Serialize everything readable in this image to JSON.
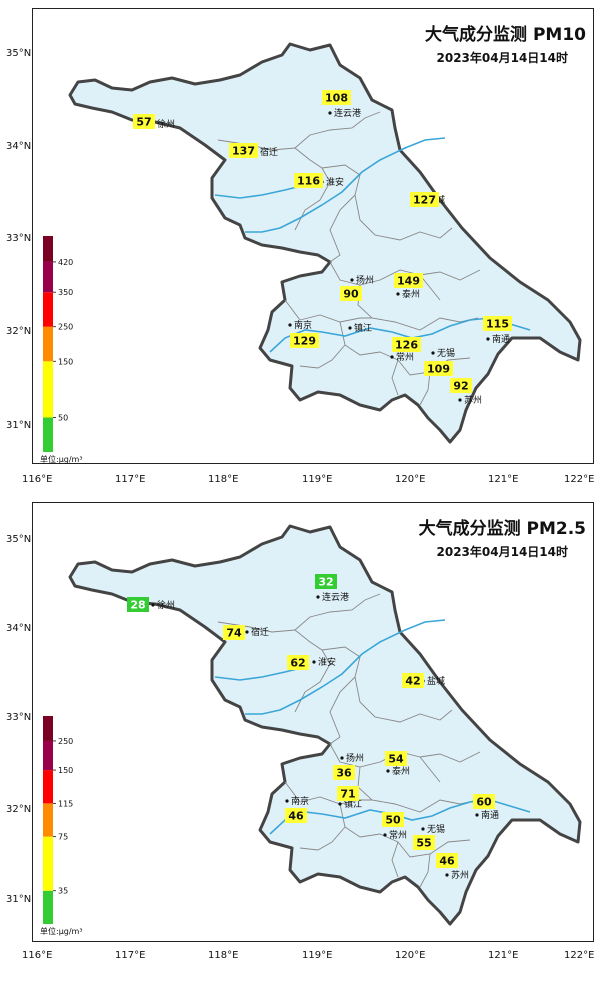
{
  "panels": [
    {
      "pollutant": "PM10",
      "title": "大气成分监测  PM10",
      "time": "2023年04月14日14时",
      "unit": "单位:μg/m³",
      "legend": {
        "bins": [
          {
            "color": "#33cc33"
          },
          {
            "color": "#ffff00"
          },
          {
            "color": "#ff8c00"
          },
          {
            "color": "#ff0000"
          },
          {
            "color": "#99004c"
          },
          {
            "color": "#7a0024"
          }
        ],
        "labels": [
          "50",
          "150",
          "250",
          "350",
          "420"
        ]
      },
      "cities": [
        {
          "name": "徐州",
          "value": "57",
          "color": "#ffff33"
        },
        {
          "name": "连云港",
          "value": "108",
          "color": "#ffff33"
        },
        {
          "name": "宿迁",
          "value": "137",
          "color": "#ffff33"
        },
        {
          "name": "淮安",
          "value": "116",
          "color": "#ffff33"
        },
        {
          "name": "盐城",
          "value": "127",
          "color": "#ffff33"
        },
        {
          "name": "扬州",
          "value": "90",
          "color": "#ffff33"
        },
        {
          "name": "泰州",
          "value": "149",
          "color": "#ffff33"
        },
        {
          "name": "南京",
          "value": "129",
          "color": "#ffff33"
        },
        {
          "name": "镇江",
          "value": "",
          "color": "#ffff33"
        },
        {
          "name": "常州",
          "value": "126",
          "color": "#ffff33"
        },
        {
          "name": "无锡",
          "value": "109",
          "color": "#ffff33"
        },
        {
          "name": "苏州",
          "value": "92",
          "color": "#ffff33"
        },
        {
          "name": "南通",
          "value": "115",
          "color": "#ffff33"
        }
      ]
    },
    {
      "pollutant": "PM2.5",
      "title": "大气成分监测  PM2.5",
      "time": "2023年04月14日14时",
      "unit": "单位:μg/m³",
      "legend": {
        "bins": [
          {
            "color": "#33cc33"
          },
          {
            "color": "#ffff00"
          },
          {
            "color": "#ff8c00"
          },
          {
            "color": "#ff0000"
          },
          {
            "color": "#99004c"
          },
          {
            "color": "#7a0024"
          }
        ],
        "labels": [
          "35",
          "75",
          "115",
          "150",
          "250"
        ]
      },
      "cities": [
        {
          "name": "徐州",
          "value": "28",
          "color": "#33cc33"
        },
        {
          "name": "连云港",
          "value": "32",
          "color": "#33cc33"
        },
        {
          "name": "宿迁",
          "value": "74",
          "color": "#ffff33"
        },
        {
          "name": "淮安",
          "value": "62",
          "color": "#ffff33"
        },
        {
          "name": "盐城",
          "value": "42",
          "color": "#ffff33"
        },
        {
          "name": "扬州",
          "value": "36",
          "color": "#ffff33"
        },
        {
          "name": "泰州",
          "value": "54",
          "color": "#ffff33"
        },
        {
          "name": "南京",
          "value": "46",
          "color": "#ffff33"
        },
        {
          "name": "镇江",
          "value": "71",
          "color": "#ffff33"
        },
        {
          "name": "常州",
          "value": "50",
          "color": "#ffff33"
        },
        {
          "name": "无锡",
          "value": "55",
          "color": "#ffff33"
        },
        {
          "name": "苏州",
          "value": "46",
          "color": "#ffff33"
        },
        {
          "name": "南通",
          "value": "60",
          "color": "#ffff33"
        }
      ]
    }
  ],
  "axes": {
    "lat_labels": [
      "35°N",
      "34°N",
      "33°N",
      "32°N",
      "31°N"
    ],
    "lon_labels": [
      "116°E",
      "117°E",
      "118°E",
      "119°E",
      "120°E",
      "121°E",
      "122°E"
    ]
  },
  "colors": {
    "land": "#dff1f8",
    "border": "#444444",
    "inner": "#888888",
    "river": "#3aa6d8"
  }
}
